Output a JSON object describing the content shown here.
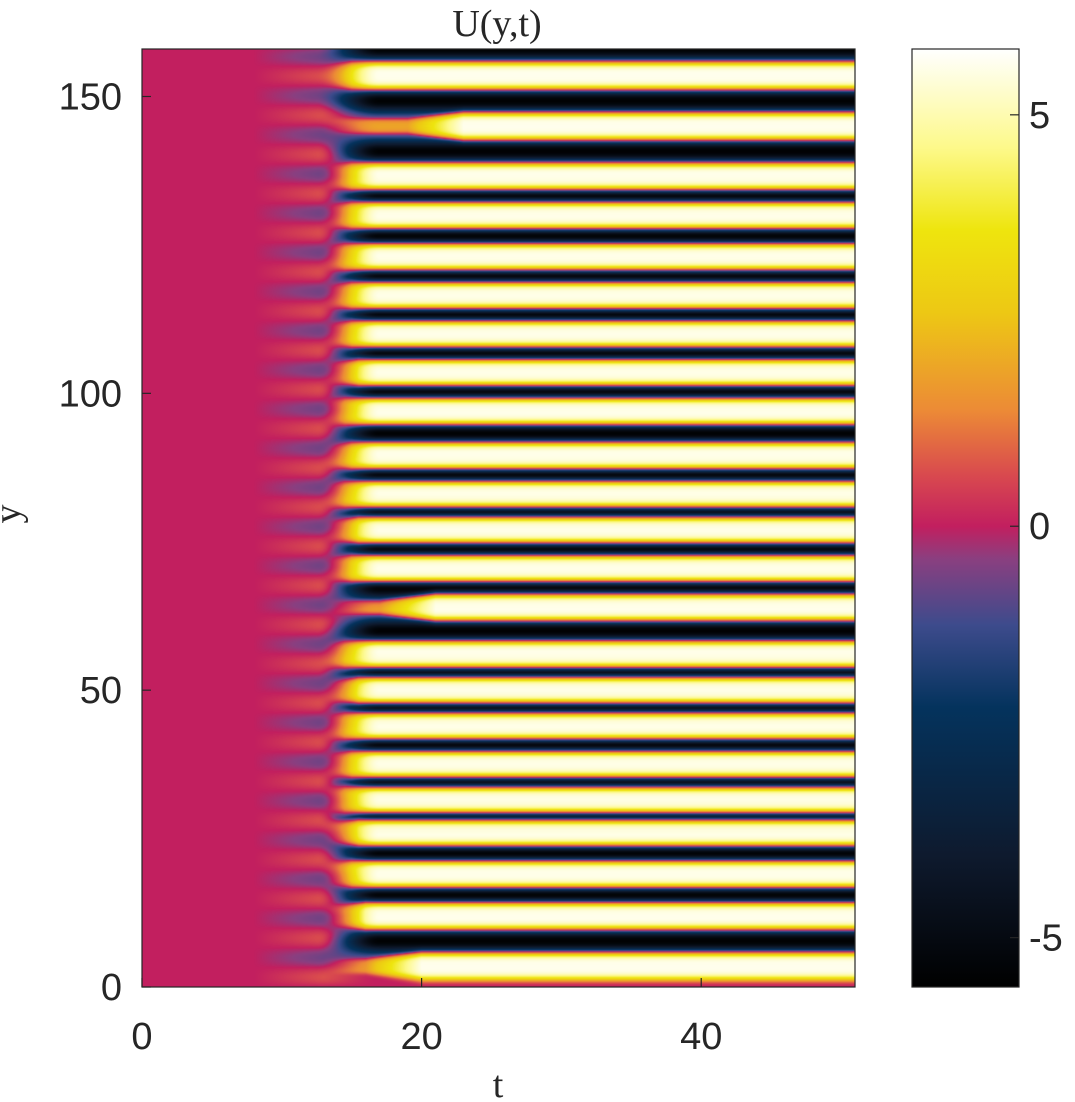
{
  "chart_data": {
    "type": "heatmap",
    "title": "U(y,t)",
    "xlabel": "t",
    "ylabel": "y",
    "xlim": [
      0,
      51
    ],
    "ylim": [
      0,
      158
    ],
    "x_ticks": [
      0,
      20,
      40
    ],
    "y_ticks": [
      0,
      50,
      100,
      150
    ],
    "colorbar": {
      "range": [
        -5.6,
        5.8
      ],
      "ticks": [
        -5,
        0,
        5
      ],
      "colormap": [
        {
          "v": -5.6,
          "color": "#000000"
        },
        {
          "v": -4.0,
          "color": "#0e1a2e"
        },
        {
          "v": -2.2,
          "color": "#04335d"
        },
        {
          "v": -1.2,
          "color": "#3d4b8c"
        },
        {
          "v": -0.4,
          "color": "#8a3f80"
        },
        {
          "v": 0.0,
          "color": "#c21f5f"
        },
        {
          "v": 0.6,
          "color": "#d8484f"
        },
        {
          "v": 1.4,
          "color": "#ec8a36"
        },
        {
          "v": 2.6,
          "color": "#edc814"
        },
        {
          "v": 3.6,
          "color": "#eee50e"
        },
        {
          "v": 4.6,
          "color": "#fdf98a"
        },
        {
          "v": 5.8,
          "color": "#ffffff"
        }
      ]
    },
    "pattern": {
      "background_value": 0,
      "stripe_amplitude": 5.2,
      "onset_t": 12.5,
      "saturation_t": 17,
      "stripe_centers_y": [
        3.5,
        12,
        19,
        26,
        31.5,
        37.5,
        44,
        50,
        56,
        64,
        70.5,
        77,
        83,
        89.5,
        97,
        103.5,
        110,
        116.5,
        123,
        130,
        136.5,
        145,
        153.5
      ],
      "stripe_formation_t": [
        19,
        15,
        14,
        14.5,
        13.5,
        14,
        13.5,
        14.5,
        13.5,
        20,
        14,
        14.5,
        13.5,
        14,
        13.5,
        14.5,
        14,
        14,
        13.5,
        14,
        14,
        22,
        14
      ]
    }
  }
}
